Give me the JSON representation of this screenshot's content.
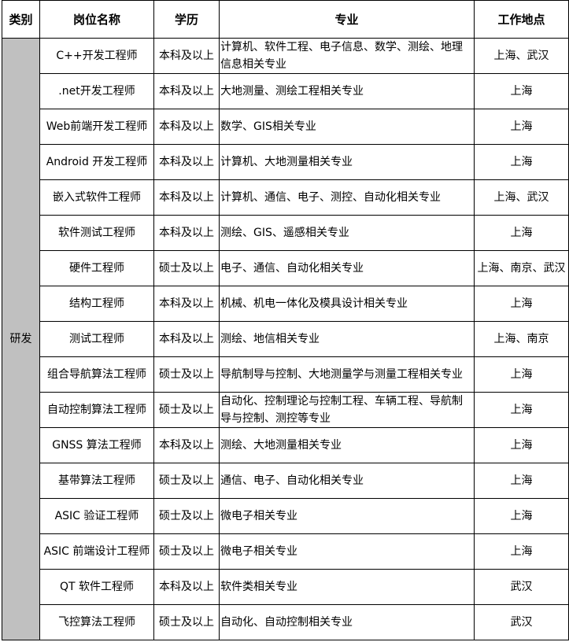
{
  "headers": [
    "类别",
    "岗位名称",
    "学历",
    "专业",
    "工作地点"
  ],
  "category": "研发",
  "rows": [
    {
      "title": "C++开发工程师",
      "education": "本科及以上",
      "major": "计算机、软件工程、电子信息、数学、测绘、地理信息相关专业",
      "location": "上海、武汉"
    },
    {
      "title": ".net开发工程师",
      "education": "本科及以上",
      "major": "大地测量、测绘工程相关专业",
      "location": "上海"
    },
    {
      "title": "Web前端开发工程师",
      "education": "本科及以上",
      "major": "数学、GIS相关专业",
      "location": "上海"
    },
    {
      "title": "Android 开发工程师",
      "education": "本科及以上",
      "major": "计算机、大地测量相关专业",
      "location": "上海"
    },
    {
      "title": "嵌入式软件工程师",
      "education": "本科及以上",
      "major": "计算机、通信、电子、测控、自动化相关专业",
      "location": "上海、武汉"
    },
    {
      "title": "软件测试工程师",
      "education": "本科及以上",
      "major": "测绘、GIS、遥感相关专业",
      "location": "上海"
    },
    {
      "title": "硬件工程师",
      "education": "硕士及以上",
      "major": "电子、通信、自动化相关专业",
      "location": "上海、南京、武汉"
    },
    {
      "title": "结构工程师",
      "education": "本科及以上",
      "major": "机械、机电一体化及模具设计相关专业",
      "location": "上海"
    },
    {
      "title": "测试工程师",
      "education": "本科及以上",
      "major": "测绘、地信相关专业",
      "location": "上海、南京"
    },
    {
      "title": "组合导航算法工程师",
      "education": "硕士及以上",
      "major": "导航制导与控制、大地测量学与测量工程相关专业",
      "location": "上海"
    },
    {
      "title": "自动控制算法工程师",
      "education": "硕士及以上",
      "major": "自动化、控制理论与控制工程、车辆工程、导航制导与控制、测控等专业",
      "location": "上海"
    },
    {
      "title": "GNSS 算法工程师",
      "education": "本科及以上",
      "major": "测绘、大地测量相关专业",
      "location": "上海"
    },
    {
      "title": "基带算法工程师",
      "education": "硕士及以上",
      "major": "通信、电子、自动化相关专业",
      "location": "上海"
    },
    {
      "title": "ASIC 验证工程师",
      "education": "硕士及以上",
      "major": "微电子相关专业",
      "location": "上海"
    },
    {
      "title": "ASIC 前端设计工程师",
      "education": "硕士及以上",
      "major": "微电子相关专业",
      "location": "上海"
    },
    {
      "title": "QT 软件工程师",
      "education": "本科及以上",
      "major": "软件类相关专业",
      "location": "武汉"
    },
    {
      "title": "飞控算法工程师",
      "education": "硕士及以上",
      "major": "自动化、自动控制相关专业",
      "location": "武汉"
    }
  ]
}
